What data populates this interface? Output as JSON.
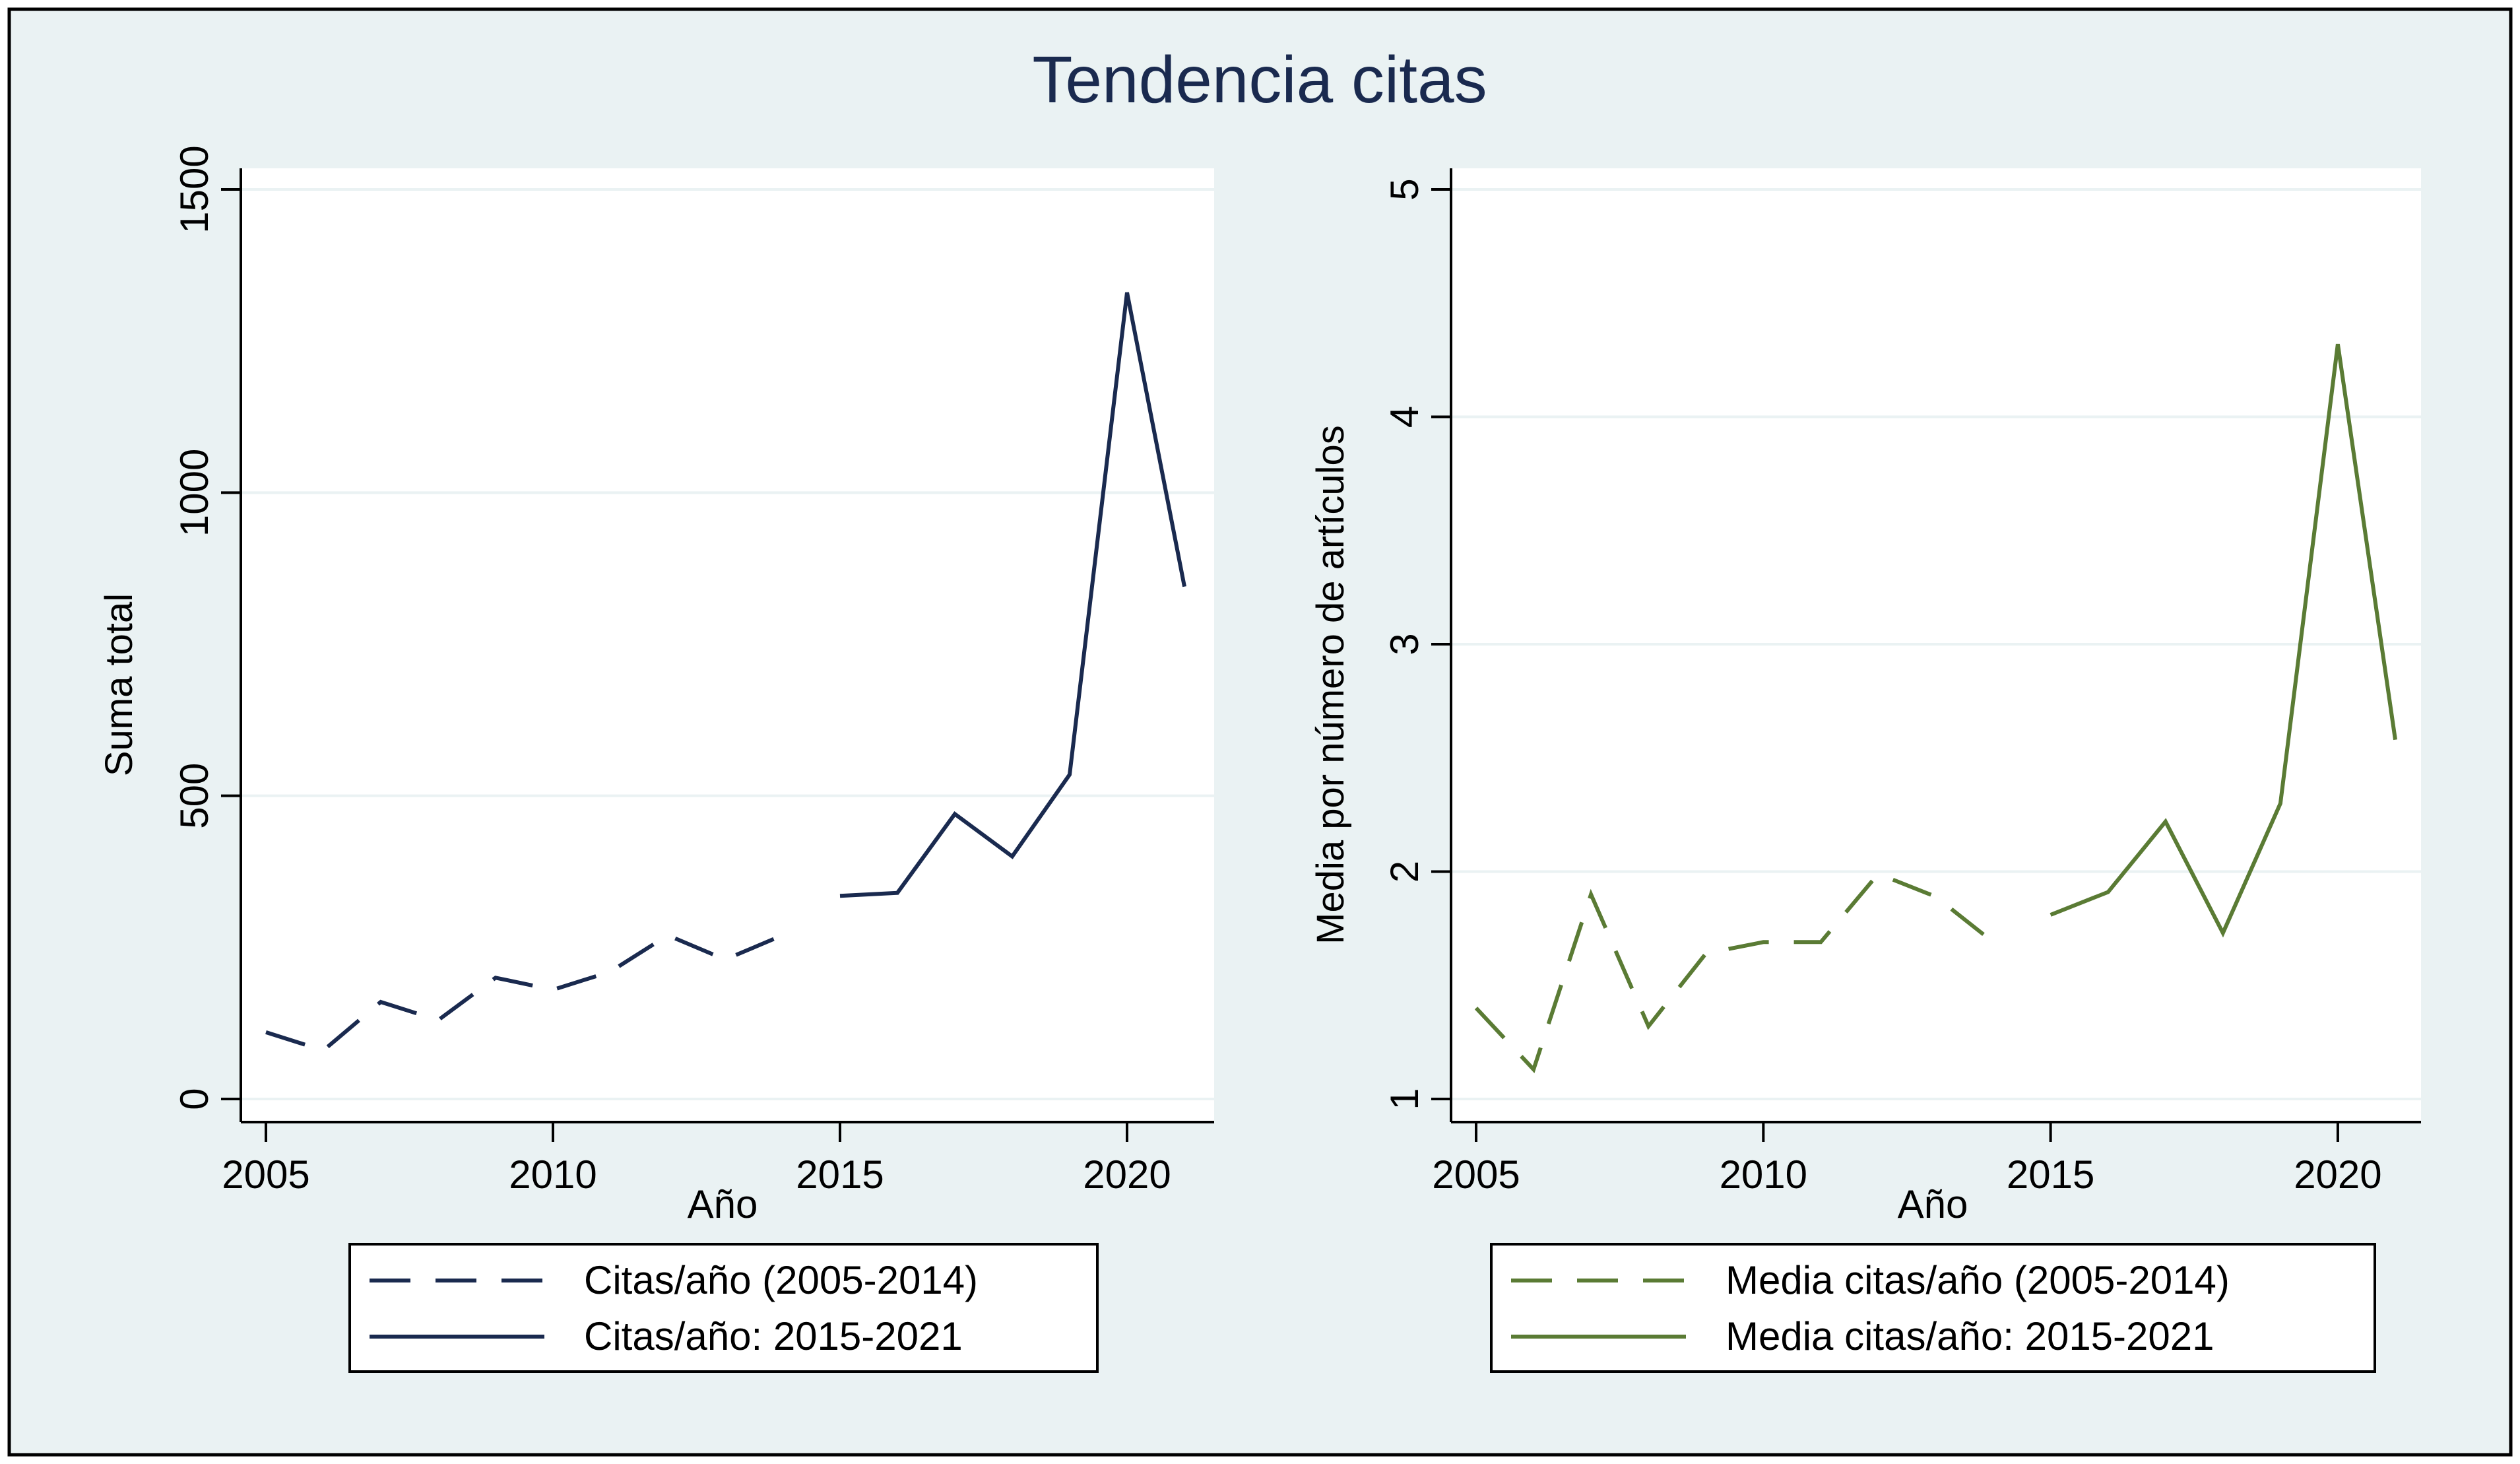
{
  "figure": {
    "title": "Tendencia citas",
    "background": "#eaf2f3",
    "plot_background": "#ffffff",
    "grid_color": "#eaf2f3"
  },
  "chart_data": [
    {
      "type": "line",
      "xlabel": "Año",
      "ylabel": "Suma total",
      "xlim": [
        2005,
        2021
      ],
      "ylim": [
        0,
        1500
      ],
      "xticks": [
        2005,
        2010,
        2015,
        2020
      ],
      "yticks": [
        0,
        500,
        1000,
        1500
      ],
      "ytick_labels": [
        "0",
        "500",
        "1000",
        "1500"
      ],
      "grid": true,
      "legend_position": "bottom",
      "series": [
        {
          "name": "Citas/año (2005-2014)",
          "style": "dashed",
          "color": "#1a2a4f",
          "x": [
            2005,
            2006,
            2007,
            2008,
            2009,
            2010,
            2011,
            2012,
            2013,
            2014
          ],
          "y": [
            110,
            80,
            160,
            130,
            200,
            180,
            210,
            270,
            230,
            270
          ]
        },
        {
          "name": "Citas/año: 2015-2021",
          "style": "solid",
          "color": "#1a2a4f",
          "x": [
            2015,
            2016,
            2017,
            2018,
            2019,
            2020,
            2021
          ],
          "y": [
            335,
            340,
            470,
            400,
            535,
            1330,
            845
          ]
        }
      ]
    },
    {
      "type": "line",
      "xlabel": "Año",
      "ylabel": "Media por número de artículos",
      "xlim": [
        2005,
        2021
      ],
      "ylim": [
        1,
        5
      ],
      "xticks": [
        2005,
        2010,
        2015,
        2020
      ],
      "yticks": [
        1,
        2,
        3,
        4,
        5
      ],
      "ytick_labels": [
        "1",
        "2",
        "3",
        "4",
        "5"
      ],
      "grid": true,
      "legend_position": "bottom",
      "series": [
        {
          "name": "Media citas/año (2005-2014)",
          "style": "dashed",
          "color": "#5a7b34",
          "x": [
            2005,
            2006,
            2007,
            2008,
            2009,
            2010,
            2011,
            2012,
            2013,
            2014
          ],
          "y": [
            1.4,
            1.13,
            1.9,
            1.32,
            1.64,
            1.69,
            1.69,
            1.99,
            1.89,
            1.69
          ]
        },
        {
          "name": "Media citas/año: 2015-2021",
          "style": "solid",
          "color": "#5a7b34",
          "x": [
            2015,
            2016,
            2017,
            2018,
            2019,
            2020,
            2021
          ],
          "y": [
            1.81,
            1.91,
            2.22,
            1.73,
            2.3,
            4.32,
            2.58
          ]
        }
      ]
    }
  ]
}
